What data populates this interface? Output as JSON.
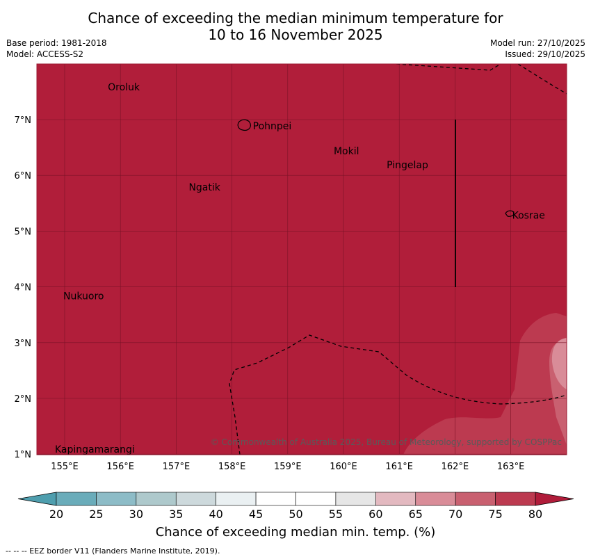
{
  "title_line1": "Chance of exceeding the median minimum temperature for",
  "title_line2": "10 to 16 November 2025",
  "base_period": "Base period: 1981-2018",
  "model": "Model: ACCESS-S2",
  "model_run": "Model run: 27/10/2025",
  "issued": "Issued: 29/10/2025",
  "copyright": "© Commonwealth of Australia 2025, Bureau of Meteorology, supported by COSPPac",
  "footer": "--  --  -- EEZ border V11 (Flanders Marine Institute, 2019).",
  "colorbar": {
    "title": "Chance of exceeding median min. temp. (%)",
    "ticks": [
      "20",
      "25",
      "30",
      "35",
      "40",
      "45",
      "50",
      "55",
      "60",
      "65",
      "70",
      "75",
      "80"
    ],
    "colors": [
      "#6aacba",
      "#8dbcc7",
      "#aec9cc",
      "#cdd9dc",
      "#eaf0f2",
      "#ffffff",
      "#ffffff",
      "#e6e6e6",
      "#e3b9c0",
      "#d98c98",
      "#c96070",
      "#bc3a50"
    ],
    "low_extend_color": "#4e9eae",
    "high_extend_color": "#b01c3a"
  },
  "map": {
    "background_color": "#b11e3a",
    "lat_labels": [
      "7°N",
      "6°N",
      "5°N",
      "4°N",
      "3°N",
      "2°N",
      "1°N"
    ],
    "lon_labels": [
      "155°E",
      "156°E",
      "157°E",
      "158°E",
      "159°E",
      "160°E",
      "161°E",
      "162°E",
      "163°E"
    ],
    "places": [
      {
        "name": "Oroluk",
        "lon": 155.75,
        "lat": 7.6
      },
      {
        "name": "Pohnpei",
        "lon": 158.35,
        "lat": 6.9
      },
      {
        "name": "Mokil",
        "lon": 159.8,
        "lat": 6.45
      },
      {
        "name": "Pingelap",
        "lon": 160.75,
        "lat": 6.2
      },
      {
        "name": "Ngatik",
        "lon": 157.2,
        "lat": 5.8
      },
      {
        "name": "Kosrae",
        "lon": 163.0,
        "lat": 5.3
      },
      {
        "name": "Nukuoro",
        "lon": 154.95,
        "lat": 3.85
      },
      {
        "name": "Kapingamarangi",
        "lon": 154.8,
        "lat": 1.1
      }
    ]
  }
}
